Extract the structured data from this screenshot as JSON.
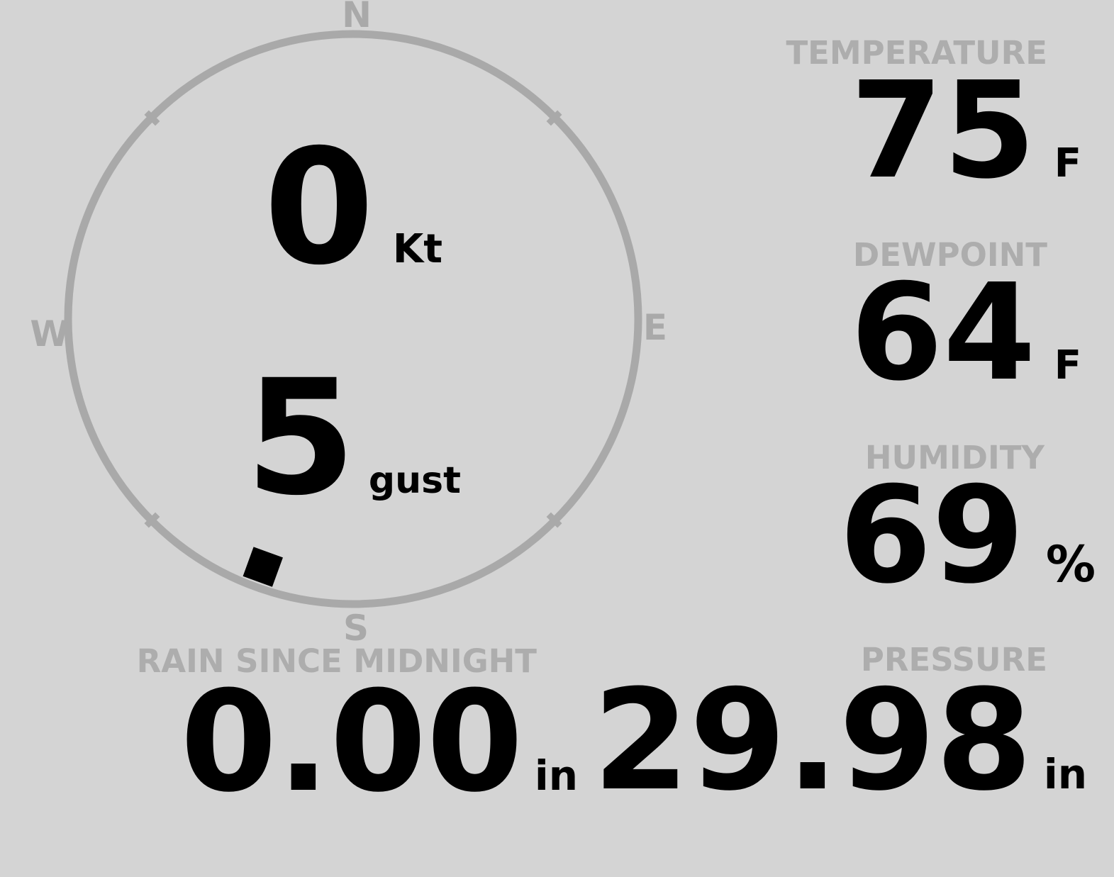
{
  "colors": {
    "background": "#d4d4d4",
    "muted_text": "#adadad",
    "compass_ring": "#a9a9a9",
    "value_text": "#000000",
    "marker": "#000000"
  },
  "compass": {
    "cardinals": {
      "north": "N",
      "east": "E",
      "south": "S",
      "west": "W"
    },
    "wind_speed": {
      "value": "0",
      "unit": "Kt"
    },
    "wind_gust": {
      "value": "5",
      "unit": "gust"
    },
    "direction_marker_bearing_deg": 200
  },
  "metrics": {
    "temperature": {
      "label": "TEMPERATURE",
      "value": "75",
      "unit": "F"
    },
    "dewpoint": {
      "label": "DEWPOINT",
      "value": "64",
      "unit": "F"
    },
    "humidity": {
      "label": "HUMIDITY",
      "value": "69",
      "unit": "%"
    },
    "rain": {
      "label": "RAIN SINCE MIDNIGHT",
      "value": "0.00",
      "unit": "in"
    },
    "pressure": {
      "label": "PRESSURE",
      "value": "29.98",
      "unit": "in"
    }
  }
}
